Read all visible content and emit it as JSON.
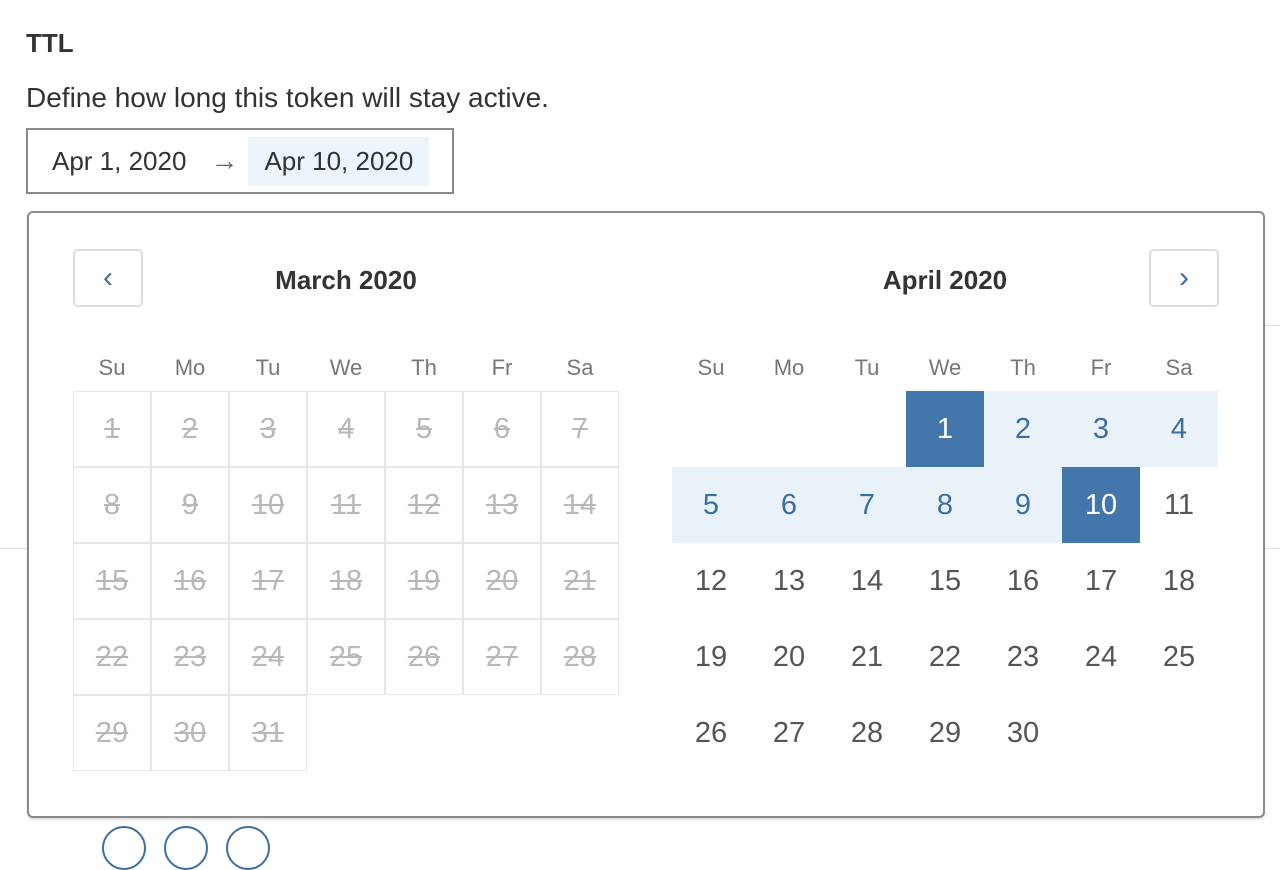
{
  "section": {
    "title": "TTL",
    "description": "Define how long this token will stay active."
  },
  "date_range": {
    "start": "Apr 1, 2020",
    "arrow": "→",
    "end": "Apr 10, 2020"
  },
  "calendar": {
    "prev_icon": "‹",
    "next_icon": "›",
    "weekdays": [
      "Su",
      "Mo",
      "Tu",
      "We",
      "Th",
      "Fr",
      "Sa"
    ],
    "months": [
      {
        "title": "March 2020",
        "first_weekday": 0,
        "days": 31,
        "disabled_through": 31,
        "selected": [],
        "range": []
      },
      {
        "title": "April 2020",
        "first_weekday": 3,
        "days": 30,
        "disabled_through": 0,
        "selected": [
          1,
          10
        ],
        "range": [
          2,
          9
        ]
      }
    ],
    "colors": {
      "selected": "#4377ab",
      "in_range": "#eaf2f9",
      "accent_text": "#3a6fa3",
      "disabled": "#b8b8b8"
    }
  }
}
